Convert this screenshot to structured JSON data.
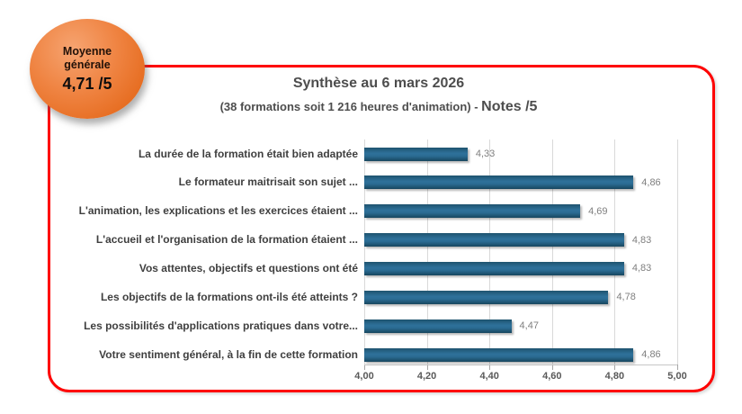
{
  "badge": {
    "line1": "Moyenne",
    "line2": "générale",
    "score": "4,71 /5"
  },
  "header": {
    "title": "Synthèse au 6 mars 2026",
    "subtitle_prefix": "(38 formations soit 1 216 heures d'animation) - ",
    "subtitle_emphasis": "Notes /5"
  },
  "colors": {
    "frame_red": "#fe0000",
    "badge_orange": "#ed7a33",
    "bar_blue": "#2e719a",
    "gridline_gray": "#d9d9d9",
    "title_gray": "#4d4d4d",
    "value_gray": "#7f7f7f"
  },
  "chart_data": {
    "type": "bar",
    "orientation": "horizontal",
    "title": "Synthèse au 6 mars 2026",
    "subtitle": "(38 formations soit 1 216 heures d'animation) - Notes /5",
    "categories": [
      "La durée de la formation était bien adaptée",
      "Le formateur maitrisait son sujet ...",
      "L'animation, les explications et les exercices étaient ...",
      "L'accueil et l'organisation de la formation étaient ...",
      "Vos attentes, objectifs et questions ont été",
      "Les objectifs de la formations ont-ils été atteints ?",
      "Les possibilités d'applications pratiques dans votre...",
      "Votre sentiment général, à la fin de cette formation"
    ],
    "values": [
      4.33,
      4.86,
      4.69,
      4.83,
      4.83,
      4.78,
      4.47,
      4.86
    ],
    "value_labels": [
      "4,33",
      "4,86",
      "4,69",
      "4,83",
      "4,83",
      "4,78",
      "4,47",
      "4,86"
    ],
    "xlim": [
      4.0,
      5.0
    ],
    "x_tick_labels": [
      "4,00",
      "4,20",
      "4,40",
      "4,60",
      "4,80",
      "5,00"
    ],
    "grid": true,
    "legend": false
  }
}
